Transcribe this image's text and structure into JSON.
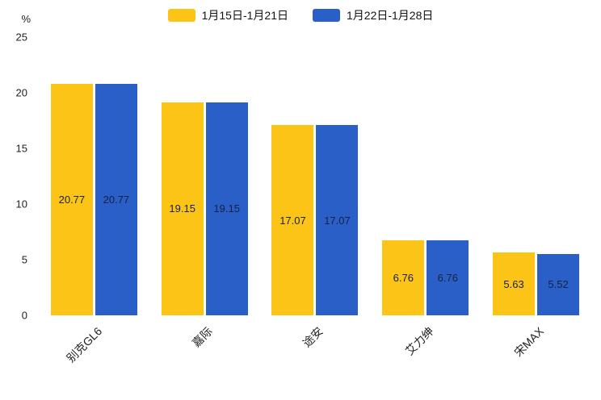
{
  "chart_data": {
    "type": "bar",
    "title": "",
    "categories": [
      "别克GL6",
      "嘉际",
      "途安",
      "艾力绅",
      "宋MAX"
    ],
    "series": [
      {
        "name": "1月15日-1月21日",
        "color": "#FCC417",
        "values": [
          20.77,
          19.15,
          17.07,
          6.76,
          5.63
        ]
      },
      {
        "name": "1月22日-1月28日",
        "color": "#2B5FC8",
        "values": [
          20.77,
          19.15,
          17.07,
          6.76,
          5.52
        ]
      }
    ],
    "xlabel": "",
    "ylabel": "%",
    "ylim": [
      0,
      25
    ],
    "yticks": [
      0,
      5,
      10,
      15,
      20,
      25
    ],
    "grid": false,
    "legend_position": "top",
    "value_labels": true,
    "value_label_color": "#16213e"
  }
}
